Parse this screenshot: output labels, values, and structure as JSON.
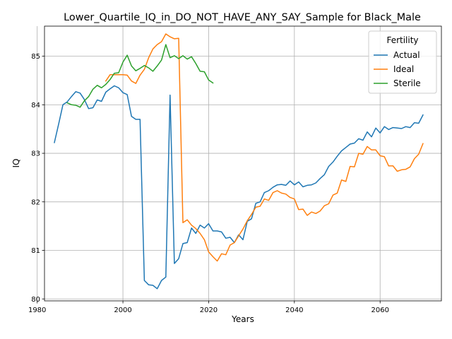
{
  "chart_data": {
    "type": "line",
    "title": "Lower_Quartile_IQ_in_DO_NOT_HAVE_ANY_SAY_Sample for Black_Male",
    "xlabel": "Years",
    "ylabel": "IQ",
    "xlim": [
      1981.7,
      2074.3
    ],
    "ylim": [
      79.96,
      85.62
    ],
    "xticks": [
      1980,
      2000,
      2020,
      2040,
      2060
    ],
    "yticks": [
      80,
      81,
      82,
      83,
      84,
      85
    ],
    "grid": true,
    "legend": {
      "title": "Fertility",
      "position": "top-right"
    },
    "colors": {
      "Actual": "#1f77b4",
      "Ideal": "#ff7f0e",
      "Sterile": "#2ca02c"
    },
    "series": [
      {
        "name": "Actual",
        "x": [
          1984,
          1985,
          1986,
          1987,
          1988,
          1989,
          1990,
          1991,
          1992,
          1993,
          1994,
          1995,
          1996,
          1997,
          1998,
          1999,
          2000,
          2001,
          2002,
          2003,
          2004,
          2005,
          2006,
          2007,
          2008,
          2009,
          2010,
          2011,
          2012,
          2013,
          2014,
          2015,
          2016,
          2017,
          2018,
          2019,
          2020,
          2021,
          2022,
          2023,
          2024,
          2025,
          2026,
          2027,
          2028,
          2029,
          2030,
          2031,
          2032,
          2033,
          2034,
          2035,
          2036,
          2037,
          2038,
          2039,
          2040,
          2041,
          2042,
          2043,
          2044,
          2045,
          2046,
          2047,
          2048,
          2049,
          2050,
          2051,
          2052,
          2053,
          2054,
          2055,
          2056,
          2057,
          2058,
          2059,
          2060,
          2061,
          2062,
          2063,
          2064,
          2065,
          2066,
          2067,
          2068,
          2069,
          2070
        ],
        "y": [
          83.22,
          83.6,
          84.0,
          84.06,
          84.17,
          84.27,
          84.24,
          84.11,
          83.92,
          83.94,
          84.1,
          84.07,
          84.26,
          84.33,
          84.39,
          84.35,
          84.25,
          84.21,
          83.76,
          83.7,
          83.7,
          80.38,
          80.29,
          80.28,
          80.21,
          80.38,
          80.45,
          84.2,
          80.73,
          80.83,
          81.14,
          81.16,
          81.46,
          81.35,
          81.52,
          81.46,
          81.55,
          81.4,
          81.4,
          81.38,
          81.25,
          81.27,
          81.16,
          81.32,
          81.22,
          81.6,
          81.65,
          81.97,
          82.0,
          82.19,
          82.23,
          82.3,
          82.35,
          82.36,
          82.34,
          82.43,
          82.35,
          82.41,
          82.31,
          82.34,
          82.35,
          82.39,
          82.48,
          82.56,
          82.73,
          82.82,
          82.94,
          83.05,
          83.12,
          83.19,
          83.21,
          83.3,
          83.27,
          83.44,
          83.34,
          83.52,
          83.42,
          83.55,
          83.49,
          83.53,
          83.52,
          83.51,
          83.55,
          83.53,
          83.63,
          83.62,
          83.79
        ]
      },
      {
        "name": "Ideal",
        "x": [
          1996,
          1997,
          1998,
          1999,
          2000,
          2001,
          2002,
          2003,
          2004,
          2005,
          2006,
          2007,
          2008,
          2009,
          2010,
          2011,
          2012,
          2013,
          2014,
          2015,
          2016,
          2017,
          2018,
          2019,
          2020,
          2021,
          2022,
          2023,
          2024,
          2025,
          2026,
          2027,
          2028,
          2029,
          2030,
          2031,
          2032,
          2033,
          2034,
          2035,
          2036,
          2037,
          2038,
          2039,
          2040,
          2041,
          2042,
          2043,
          2044,
          2045,
          2046,
          2047,
          2048,
          2049,
          2050,
          2051,
          2052,
          2053,
          2054,
          2055,
          2056,
          2057,
          2058,
          2059,
          2060,
          2061,
          2062,
          2063,
          2064,
          2065,
          2066,
          2067,
          2068,
          2069,
          2070
        ],
        "y": [
          84.49,
          84.62,
          84.62,
          84.62,
          84.62,
          84.61,
          84.49,
          84.44,
          84.61,
          84.73,
          84.97,
          85.15,
          85.24,
          85.3,
          85.46,
          85.4,
          85.36,
          85.37,
          81.57,
          81.63,
          81.52,
          81.45,
          81.35,
          81.22,
          80.97,
          80.87,
          80.78,
          80.93,
          80.91,
          81.11,
          81.16,
          81.3,
          81.44,
          81.61,
          81.74,
          81.89,
          81.91,
          82.06,
          82.03,
          82.19,
          82.23,
          82.18,
          82.16,
          82.09,
          82.06,
          81.84,
          81.85,
          81.72,
          81.79,
          81.76,
          81.81,
          81.92,
          81.96,
          82.14,
          82.18,
          82.45,
          82.42,
          82.73,
          82.72,
          83.0,
          82.98,
          83.14,
          83.07,
          83.07,
          82.95,
          82.93,
          82.74,
          82.74,
          82.63,
          82.66,
          82.67,
          82.72,
          82.89,
          82.98,
          83.2
        ]
      },
      {
        "name": "Sterile",
        "x": [
          1987,
          1988,
          1989,
          1990,
          1991,
          1992,
          1993,
          1994,
          1995,
          1996,
          1997,
          1998,
          1999,
          2000,
          2001,
          2002,
          2003,
          2004,
          2005,
          2006,
          2007,
          2008,
          2009,
          2010,
          2011,
          2012,
          2013,
          2014,
          2015,
          2016,
          2017,
          2018,
          2019,
          2020,
          2021
        ],
        "y": [
          84.04,
          84.0,
          83.99,
          83.95,
          84.08,
          84.17,
          84.32,
          84.4,
          84.35,
          84.42,
          84.52,
          84.65,
          84.66,
          84.88,
          85.02,
          84.8,
          84.7,
          84.75,
          84.81,
          84.76,
          84.69,
          84.8,
          84.92,
          85.24,
          84.97,
          85.01,
          84.95,
          85.01,
          84.94,
          84.99,
          84.85,
          84.69,
          84.68,
          84.51,
          84.45
        ]
      }
    ]
  }
}
